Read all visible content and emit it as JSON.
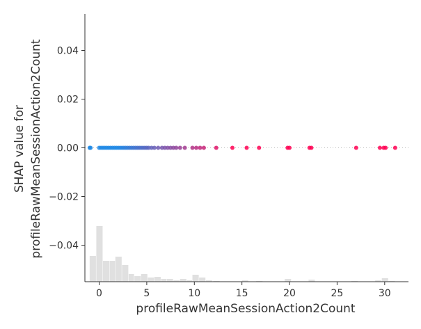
{
  "chart_data": {
    "type": "scatter",
    "title": "",
    "xlabel": "profileRawMeanSessionAction2Count",
    "ylabel_lines": [
      "SHAP value for",
      "profileRawMeanSessionAction2Count"
    ],
    "xlim": [
      -1.5,
      32.5
    ],
    "ylim": [
      -0.055,
      0.055
    ],
    "x_ticks": [
      0,
      5,
      10,
      15,
      20,
      25,
      30
    ],
    "y_ticks": [
      0.04,
      0.02,
      0.0,
      -0.02,
      -0.04
    ],
    "y_tick_labels": [
      "0.04",
      "0.02",
      "0.00",
      "−0.02",
      "−0.04"
    ],
    "grid": false,
    "reference_line_y": 0.0,
    "colors": {
      "low": "#1e88e5",
      "high": "#ff0052",
      "histogram": "#e0e0e0",
      "axis": "#333333"
    },
    "points": [
      {
        "x": -1.0,
        "y": 0.0
      },
      {
        "x": -0.9,
        "y": 0.0
      },
      {
        "x": 0.0,
        "y": 0.0
      },
      {
        "x": 0.2,
        "y": 0.0
      },
      {
        "x": 0.4,
        "y": 0.0
      },
      {
        "x": 0.6,
        "y": 0.0
      },
      {
        "x": 0.8,
        "y": 0.0
      },
      {
        "x": 1.0,
        "y": 0.0
      },
      {
        "x": 1.2,
        "y": 0.0
      },
      {
        "x": 1.4,
        "y": 0.0
      },
      {
        "x": 1.6,
        "y": 0.0
      },
      {
        "x": 1.8,
        "y": 0.0
      },
      {
        "x": 2.0,
        "y": 0.0
      },
      {
        "x": 2.2,
        "y": 0.0
      },
      {
        "x": 2.4,
        "y": 0.0
      },
      {
        "x": 2.6,
        "y": 0.0
      },
      {
        "x": 2.8,
        "y": 0.0
      },
      {
        "x": 3.0,
        "y": 0.0
      },
      {
        "x": 3.2,
        "y": 0.0
      },
      {
        "x": 3.4,
        "y": 0.0
      },
      {
        "x": 3.6,
        "y": 0.0
      },
      {
        "x": 3.8,
        "y": 0.0
      },
      {
        "x": 4.0,
        "y": 0.0
      },
      {
        "x": 4.2,
        "y": 0.0
      },
      {
        "x": 4.4,
        "y": 0.0
      },
      {
        "x": 4.6,
        "y": 0.0
      },
      {
        "x": 4.8,
        "y": 0.0
      },
      {
        "x": 5.0,
        "y": 0.0
      },
      {
        "x": 5.2,
        "y": 0.0
      },
      {
        "x": 5.5,
        "y": 0.0
      },
      {
        "x": 5.8,
        "y": 0.0
      },
      {
        "x": 6.2,
        "y": 0.0
      },
      {
        "x": 6.6,
        "y": 0.0
      },
      {
        "x": 6.9,
        "y": 0.0
      },
      {
        "x": 7.2,
        "y": 0.0
      },
      {
        "x": 7.5,
        "y": 0.0
      },
      {
        "x": 7.8,
        "y": 0.0
      },
      {
        "x": 8.1,
        "y": 0.0
      },
      {
        "x": 8.5,
        "y": 0.0
      },
      {
        "x": 9.0,
        "y": 0.0
      },
      {
        "x": 9.8,
        "y": 0.0
      },
      {
        "x": 10.2,
        "y": 0.0
      },
      {
        "x": 10.6,
        "y": 0.0
      },
      {
        "x": 11.0,
        "y": 0.0
      },
      {
        "x": 12.3,
        "y": 0.0
      },
      {
        "x": 14.0,
        "y": 0.0
      },
      {
        "x": 15.5,
        "y": 0.0
      },
      {
        "x": 16.8,
        "y": 0.0
      },
      {
        "x": 19.8,
        "y": 0.0
      },
      {
        "x": 20.0,
        "y": 0.0
      },
      {
        "x": 22.1,
        "y": 0.0
      },
      {
        "x": 22.3,
        "y": 0.0
      },
      {
        "x": 27.0,
        "y": 0.0
      },
      {
        "x": 29.5,
        "y": 0.0
      },
      {
        "x": 29.9,
        "y": 0.0
      },
      {
        "x": 30.1,
        "y": 0.0
      },
      {
        "x": 31.1,
        "y": 0.0
      }
    ],
    "histogram": [
      {
        "x0": -1.0,
        "x1": -0.3,
        "h": 0.37
      },
      {
        "x0": -0.3,
        "x1": 0.4,
        "h": 0.8
      },
      {
        "x0": 0.4,
        "x1": 1.1,
        "h": 0.3
      },
      {
        "x0": 1.1,
        "x1": 1.7,
        "h": 0.3
      },
      {
        "x0": 1.7,
        "x1": 2.4,
        "h": 0.36
      },
      {
        "x0": 2.4,
        "x1": 3.1,
        "h": 0.24
      },
      {
        "x0": 3.1,
        "x1": 3.7,
        "h": 0.11
      },
      {
        "x0": 3.7,
        "x1": 4.4,
        "h": 0.08
      },
      {
        "x0": 4.4,
        "x1": 5.1,
        "h": 0.11
      },
      {
        "x0": 5.1,
        "x1": 5.8,
        "h": 0.06
      },
      {
        "x0": 5.8,
        "x1": 6.5,
        "h": 0.07
      },
      {
        "x0": 6.5,
        "x1": 7.1,
        "h": 0.04
      },
      {
        "x0": 7.1,
        "x1": 7.8,
        "h": 0.04
      },
      {
        "x0": 7.8,
        "x1": 8.5,
        "h": 0.02
      },
      {
        "x0": 8.5,
        "x1": 9.2,
        "h": 0.04
      },
      {
        "x0": 9.2,
        "x1": 9.8,
        "h": 0.02
      },
      {
        "x0": 9.8,
        "x1": 10.5,
        "h": 0.1
      },
      {
        "x0": 10.5,
        "x1": 11.2,
        "h": 0.06
      },
      {
        "x0": 11.2,
        "x1": 11.9,
        "h": 0.02
      },
      {
        "x0": 12.0,
        "x1": 12.7,
        "h": 0.01
      },
      {
        "x0": 15.0,
        "x1": 15.7,
        "h": 0.02
      },
      {
        "x0": 16.5,
        "x1": 17.2,
        "h": 0.01
      },
      {
        "x0": 19.5,
        "x1": 20.2,
        "h": 0.04
      },
      {
        "x0": 22.0,
        "x1": 22.7,
        "h": 0.03
      },
      {
        "x0": 26.5,
        "x1": 27.2,
        "h": 0.01
      },
      {
        "x0": 29.0,
        "x1": 29.7,
        "h": 0.02
      },
      {
        "x0": 29.7,
        "x1": 30.4,
        "h": 0.05
      },
      {
        "x0": 30.4,
        "x1": 31.1,
        "h": 0.01
      }
    ]
  }
}
